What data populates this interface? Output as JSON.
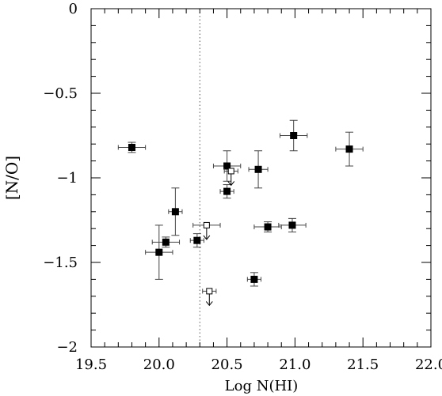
{
  "chart_data": {
    "type": "scatter",
    "xlabel": "Log N(HI)",
    "ylabel": "[N/O]",
    "xlim": [
      19.5,
      22.0
    ],
    "ylim": [
      -2,
      0
    ],
    "grid": false,
    "x_ticks": [
      19.5,
      20.0,
      20.5,
      21.0,
      21.5,
      22.0
    ],
    "x_tick_labels": [
      "19.5",
      "20.0",
      "20.5",
      "21.0",
      "21.5",
      "22.0"
    ],
    "y_ticks": [
      0,
      -0.5,
      -1,
      -1.5,
      -2
    ],
    "y_tick_labels": [
      "0",
      "−0.5",
      "−1",
      "−1.5",
      "−2"
    ],
    "reference_line": {
      "x": 20.3,
      "style": "dotted"
    },
    "series": [
      {
        "marker": "filled-square",
        "points": [
          {
            "x": 19.8,
            "y": -0.82,
            "xerr": 0.1,
            "yerr": 0.03
          },
          {
            "x": 20.5,
            "y": -0.93,
            "xerr": 0.1,
            "yerr": 0.09
          },
          {
            "x": 20.5,
            "y": -1.08,
            "xerr": 0.05,
            "yerr": 0.04
          },
          {
            "x": 20.73,
            "y": -0.95,
            "xerr": 0.07,
            "yerr": 0.11
          },
          {
            "x": 20.99,
            "y": -0.75,
            "xerr": 0.1,
            "yerr": 0.09
          },
          {
            "x": 21.4,
            "y": -0.83,
            "xerr": 0.1,
            "yerr": 0.1
          },
          {
            "x": 20.12,
            "y": -1.2,
            "xerr": 0.05,
            "yerr": 0.14
          },
          {
            "x": 20.05,
            "y": -1.38,
            "xerr": 0.1,
            "yerr": 0.03
          },
          {
            "x": 20.0,
            "y": -1.44,
            "xerr": 0.1,
            "yerr": 0.16
          },
          {
            "x": 20.28,
            "y": -1.37,
            "xerr": 0.05,
            "yerr": 0.04
          },
          {
            "x": 20.8,
            "y": -1.29,
            "xerr": 0.1,
            "yerr": 0.03
          },
          {
            "x": 20.98,
            "y": -1.28,
            "xerr": 0.1,
            "yerr": 0.04
          },
          {
            "x": 20.7,
            "y": -1.6,
            "xerr": 0.05,
            "yerr": 0.04
          }
        ]
      },
      {
        "marker": "open-square-upper-limit",
        "points": [
          {
            "x": 20.53,
            "y": -0.96,
            "xerr": 0.05,
            "yerr": 0
          },
          {
            "x": 20.35,
            "y": -1.28,
            "xerr": 0.1,
            "yerr": 0
          },
          {
            "x": 20.37,
            "y": -1.67,
            "xerr": 0.05,
            "yerr": 0
          }
        ]
      }
    ]
  }
}
